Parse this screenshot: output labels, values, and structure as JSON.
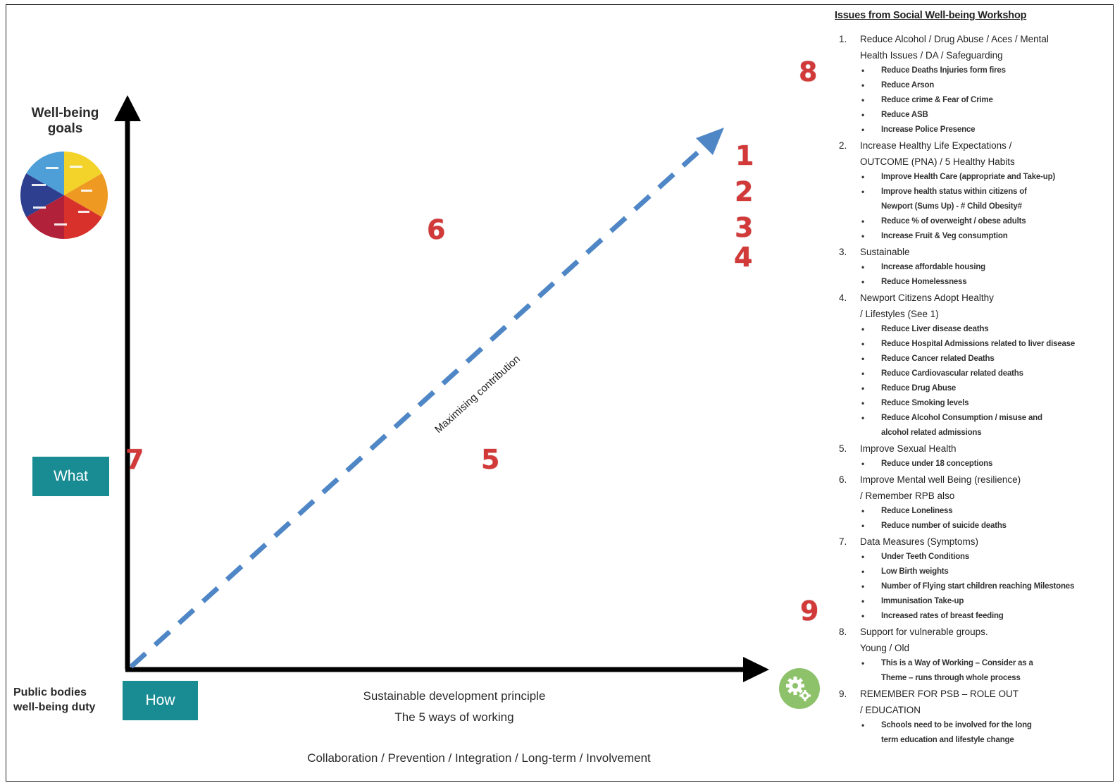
{
  "diagram": {
    "y_axis_label": "Well-being goals",
    "x_axis_label": "Public bodies well-being duty",
    "what_box": "What",
    "how_box": "How",
    "diagonal_label": "Maximising contribution",
    "principle_line1": "Sustainable development principle",
    "principle_line2": "The 5 ways of working",
    "ways_of_working": "Collaboration / Prevention / Integration / Long-term / Involvement",
    "wheel_icon": "well-being-goals-wheel-icon",
    "gear_icon": "ways-of-working-gear-icon",
    "colors": {
      "arrow": "#4f86c6",
      "box": "#198c93",
      "marker": "#d23a3a",
      "gear_circle": "#8dc26b"
    },
    "markers": {
      "m1": "1",
      "m2": "2",
      "m3": "3",
      "m4": "4",
      "m5": "5",
      "m6": "6",
      "m7": "7",
      "m8": "8",
      "m9": "9"
    }
  },
  "issues": {
    "title": "Issues from Social  Well-being Workshop",
    "items": [
      {
        "num": "1.",
        "lines": [
          "Reduce Alcohol / Drug Abuse / Aces / Mental",
          "Health Issues / DA / Safeguarding"
        ],
        "subs": [
          "Reduce Deaths Injuries form fires",
          "Reduce Arson",
          "Reduce crime & Fear of Crime",
          "Reduce ASB",
          "Increase Police Presence"
        ]
      },
      {
        "num": "2.",
        "lines": [
          "Increase Healthy Life Expectations /",
          "OUTCOME (PNA) / 5 Healthy Habits"
        ],
        "subs": [
          "Improve Health Care (appropriate and Take-up)",
          "Improve health status within citizens of",
          "Reduce % of overweight / obese adults",
          "Increase Fruit & Veg consumption"
        ],
        "sub_cont": {
          "1": "Newport (Sums Up) - # Child Obesity#"
        }
      },
      {
        "num": "3.",
        "lines": [
          "Sustainable"
        ],
        "subs": [
          "Increase affordable housing",
          "Reduce Homelessness"
        ]
      },
      {
        "num": "4.",
        "lines": [
          "Newport Citizens Adopt Healthy",
          "/ Lifestyles (See 1)"
        ],
        "subs": [
          "Reduce Liver disease deaths",
          "Reduce Hospital Admissions related to liver disease",
          "Reduce Cancer related Deaths",
          "Reduce Cardiovascular related deaths",
          "Reduce Drug Abuse",
          "Reduce Smoking levels",
          "Reduce Alcohol Consumption / misuse and"
        ],
        "sub_cont": {
          "6": "alcohol related admissions"
        }
      },
      {
        "num": "5.",
        "lines": [
          "Improve Sexual Health"
        ],
        "subs": [
          "Reduce under 18 conceptions"
        ]
      },
      {
        "num": "6.",
        "lines": [
          "Improve Mental well Being (resilience)",
          "/ Remember RPB also"
        ],
        "subs": [
          "Reduce Loneliness",
          "Reduce number of suicide deaths"
        ]
      },
      {
        "num": "7.",
        "lines": [
          "Data Measures (Symptoms)"
        ],
        "subs": [
          "Under Teeth Conditions",
          "Low Birth weights",
          "Number of Flying start children reaching Milestones",
          "Immunisation Take-up",
          "Increased rates of breast feeding"
        ]
      },
      {
        "num": "8.",
        "lines": [
          "Support  for vulnerable groups.",
          "Young / Old"
        ],
        "subs": [
          "This is a Way of Working – Consider as a"
        ],
        "sub_cont": {
          "0": "Theme – runs through whole process"
        }
      },
      {
        "num": "9.",
        "lines": [
          "REMEMBER FOR PSB – ROLE OUT",
          "/ EDUCATION"
        ],
        "subs": [
          "Schools need to be involved for the long"
        ],
        "sub_cont": {
          "0": "term education and lifestyle change"
        }
      }
    ]
  }
}
